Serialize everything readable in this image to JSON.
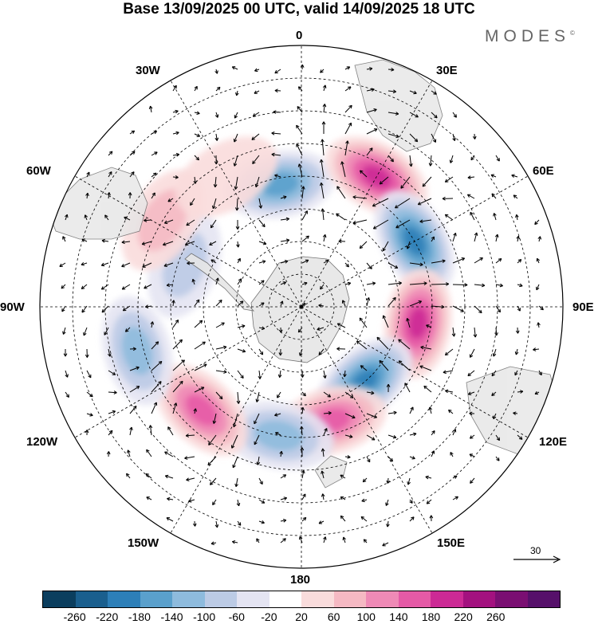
{
  "title": "Base 13/09/2025 00 UTC, valid 14/09/2025 18 UTC",
  "brand": "MODES",
  "brand_mark": "©",
  "longitude_labels": {
    "l0": "0",
    "l30e": "30E",
    "l60e": "60E",
    "l90e": "90E",
    "l120e": "120E",
    "l150e": "150E",
    "l180": "180",
    "l150w": "150W",
    "l120w": "120W",
    "l90w": "90W",
    "l60w": "60W",
    "l30w": "30W"
  },
  "reference_vector": "30",
  "colorbar": {
    "colors": [
      "#0b3e5e",
      "#1a5f8e",
      "#2d7fb8",
      "#5aa0cc",
      "#8ebbdd",
      "#bccbe5",
      "#e4e4f2",
      "#ffffff",
      "#f9dcdc",
      "#f5b9c3",
      "#ef8ab6",
      "#e55aa6",
      "#cc2a95",
      "#a3117f",
      "#7a0f72",
      "#56106a"
    ],
    "labels": [
      "-260",
      "-220",
      "-180",
      "-140",
      "-100",
      "-60",
      "-20",
      "20",
      "60",
      "100",
      "140",
      "180",
      "220",
      "260"
    ]
  },
  "anomaly_centers": [
    {
      "lon": 350,
      "colat": 38,
      "value": -180
    },
    {
      "lon": 30,
      "colat": 46,
      "value": 220
    },
    {
      "lon": 60,
      "colat": 40,
      "value": -200
    },
    {
      "lon": 98,
      "colat": 36,
      "value": 200
    },
    {
      "lon": 140,
      "colat": 30,
      "value": -200
    },
    {
      "lon": 165,
      "colat": 36,
      "value": 160
    },
    {
      "lon": 190,
      "colat": 40,
      "value": -140
    },
    {
      "lon": 224,
      "colat": 44,
      "value": 180
    },
    {
      "lon": 255,
      "colat": 52,
      "value": -120
    },
    {
      "lon": 290,
      "colat": 38,
      "value": -100
    },
    {
      "lon": 302,
      "colat": 50,
      "value": 80
    },
    {
      "lon": 330,
      "colat": 46,
      "value": 60
    }
  ]
}
